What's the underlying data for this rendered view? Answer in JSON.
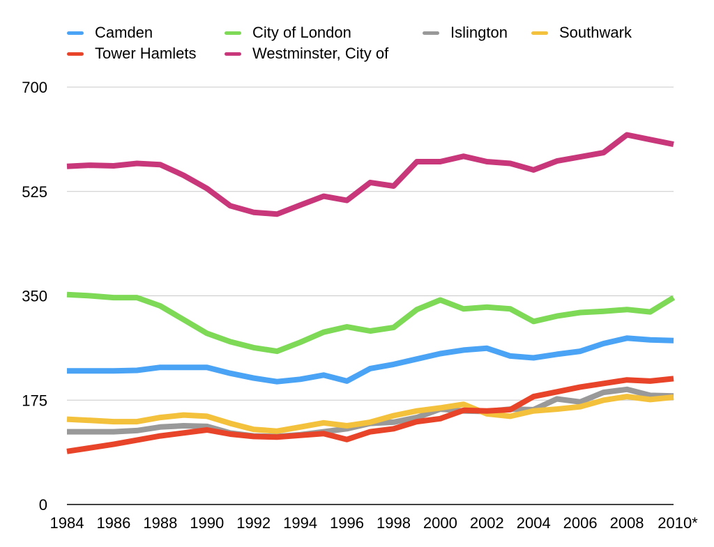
{
  "chart_data": {
    "type": "line",
    "title": "",
    "xlabel": "",
    "ylabel": "",
    "ylim": [
      0,
      700
    ],
    "yticks": [
      0,
      175,
      350,
      525,
      700
    ],
    "grid": true,
    "legend_position": "top",
    "x": [
      1984,
      1985,
      1986,
      1987,
      1988,
      1989,
      1990,
      1991,
      1992,
      1993,
      1994,
      1995,
      1996,
      1997,
      1998,
      1999,
      2000,
      2001,
      2002,
      2003,
      2004,
      2005,
      2006,
      2007,
      2008,
      2009,
      2010
    ],
    "xtick_labels": [
      "1984",
      "1986",
      "1988",
      "1990",
      "1992",
      "1994",
      "1996",
      "1998",
      "2000",
      "2002",
      "2004",
      "2006",
      "2008",
      "2010*"
    ],
    "series": [
      {
        "name": "Camden",
        "color": "#4aa3f5",
        "values": [
          224,
          224,
          224,
          225,
          230,
          230,
          230,
          220,
          212,
          206,
          210,
          217,
          207,
          228,
          235,
          244,
          253,
          259,
          262,
          249,
          246,
          252,
          257,
          270,
          279,
          276,
          275
        ]
      },
      {
        "name": "City of London",
        "color": "#7ed957",
        "values": [
          352,
          350,
          347,
          347,
          333,
          310,
          287,
          273,
          263,
          257,
          272,
          289,
          298,
          291,
          297,
          327,
          343,
          328,
          331,
          328,
          307,
          316,
          322,
          324,
          327,
          323,
          347
        ]
      },
      {
        "name": "Islington",
        "color": "#999999",
        "values": [
          122,
          122,
          122,
          124,
          130,
          132,
          131,
          120,
          115,
          114,
          117,
          122,
          127,
          136,
          138,
          146,
          160,
          157,
          156,
          160,
          159,
          177,
          172,
          188,
          193,
          183,
          182
        ]
      },
      {
        "name": "Southwark",
        "color": "#f4c13d",
        "values": [
          143,
          141,
          139,
          139,
          146,
          150,
          148,
          136,
          126,
          123,
          130,
          137,
          132,
          138,
          149,
          157,
          162,
          168,
          152,
          148,
          157,
          160,
          164,
          175,
          181,
          176,
          180
        ]
      },
      {
        "name": "Tower Hamlets",
        "color": "#e8442a",
        "values": [
          89,
          95,
          101,
          108,
          115,
          120,
          125,
          118,
          114,
          113,
          116,
          119,
          109,
          122,
          127,
          139,
          144,
          158,
          157,
          159,
          181,
          189,
          197,
          203,
          209,
          207,
          211
        ]
      },
      {
        "name": "Westminster, City of",
        "color": "#c7377a",
        "values": [
          567,
          569,
          568,
          572,
          570,
          552,
          530,
          501,
          490,
          487,
          502,
          517,
          510,
          540,
          534,
          575,
          575,
          584,
          575,
          572,
          561,
          576,
          583,
          590,
          620,
          612,
          604
        ]
      }
    ]
  }
}
